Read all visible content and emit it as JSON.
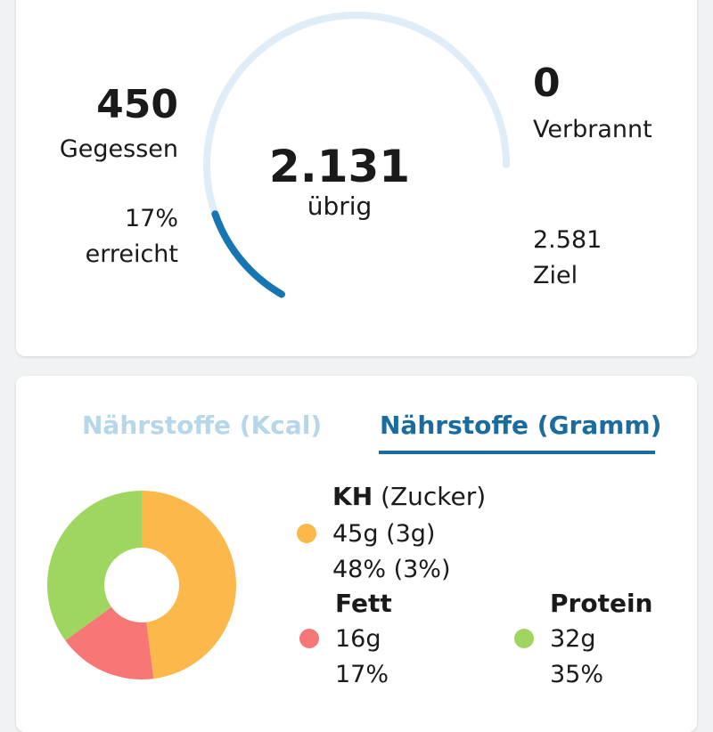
{
  "summary": {
    "eaten_value": "450",
    "eaten_label": "Gegessen",
    "reached_percent": "17%",
    "reached_label": "erreicht",
    "remaining_value": "2.131",
    "remaining_label": "übrig",
    "burned_value": "0",
    "burned_label": "Verbrannt",
    "goal_value": "2.581",
    "goal_label": "Ziel",
    "progress_fraction": 0.17,
    "colors": {
      "track": "#deedf7",
      "progress": "#1676b4"
    }
  },
  "tabs": [
    {
      "label": "Nährstoffe (Kcal)",
      "active": false
    },
    {
      "label": "Nährstoffe (Gramm)",
      "active": true
    }
  ],
  "macros": {
    "carbs": {
      "title": "KH",
      "sub": "(Zucker)",
      "grams": "45g (3g)",
      "percent": "48% (3%)",
      "value": 48,
      "color": "#fdb84c"
    },
    "fat": {
      "title": "Fett",
      "grams": "16g",
      "percent": "17%",
      "value": 17,
      "color": "#f77777"
    },
    "protein": {
      "title": "Protein",
      "grams": "32g",
      "percent": "35%",
      "value": 35,
      "color": "#9fd660"
    }
  }
}
